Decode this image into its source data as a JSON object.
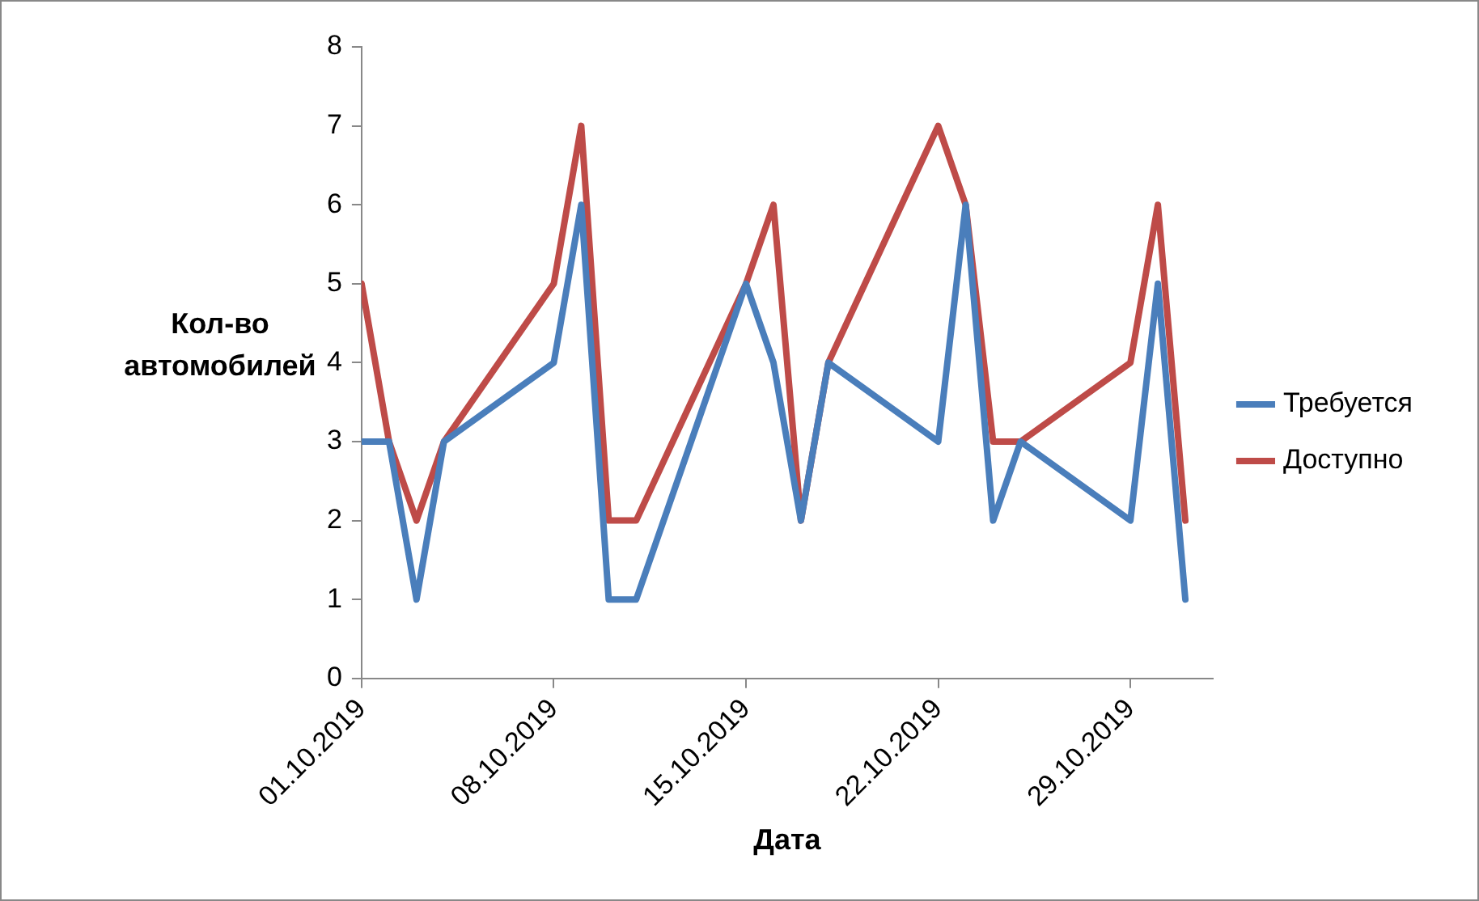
{
  "chart_data": {
    "type": "line",
    "xlabel": "Дата",
    "ylabel": "Кол-во\nавтомобилей",
    "x": [
      "2019-10-01",
      "2019-10-02",
      "2019-10-03",
      "2019-10-04",
      "2019-10-08",
      "2019-10-09",
      "2019-10-10",
      "2019-10-11",
      "2019-10-15",
      "2019-10-16",
      "2019-10-17",
      "2019-10-18",
      "2019-10-22",
      "2019-10-23",
      "2019-10-24",
      "2019-10-25",
      "2019-10-29",
      "2019-10-30",
      "2019-10-31"
    ],
    "series": [
      {
        "name": "Требуется",
        "color": "#4a7ebb",
        "values": [
          3,
          3,
          1,
          3,
          4,
          6,
          1,
          1,
          5,
          4,
          2,
          4,
          3,
          6,
          2,
          3,
          2,
          5,
          1
        ]
      },
      {
        "name": "Доступно",
        "color": "#be4b48",
        "values": [
          5,
          3,
          2,
          3,
          5,
          7,
          2,
          2,
          5,
          6,
          2,
          4,
          7,
          6,
          3,
          3,
          4,
          6,
          2
        ]
      }
    ],
    "xlim": [
      "2019-10-01",
      "2019-11-01"
    ],
    "xticks": [
      {
        "value": "2019-10-01",
        "label": "01.10.2019"
      },
      {
        "value": "2019-10-08",
        "label": "08.10.2019"
      },
      {
        "value": "2019-10-15",
        "label": "15.10.2019"
      },
      {
        "value": "2019-10-22",
        "label": "22.10.2019"
      },
      {
        "value": "2019-10-29",
        "label": "29.10.2019"
      }
    ],
    "ylim": [
      0,
      8
    ],
    "yticks": [
      0,
      1,
      2,
      3,
      4,
      5,
      6,
      7,
      8
    ],
    "grid": false,
    "legend": "right",
    "marker": "none",
    "line_style": "solid"
  }
}
